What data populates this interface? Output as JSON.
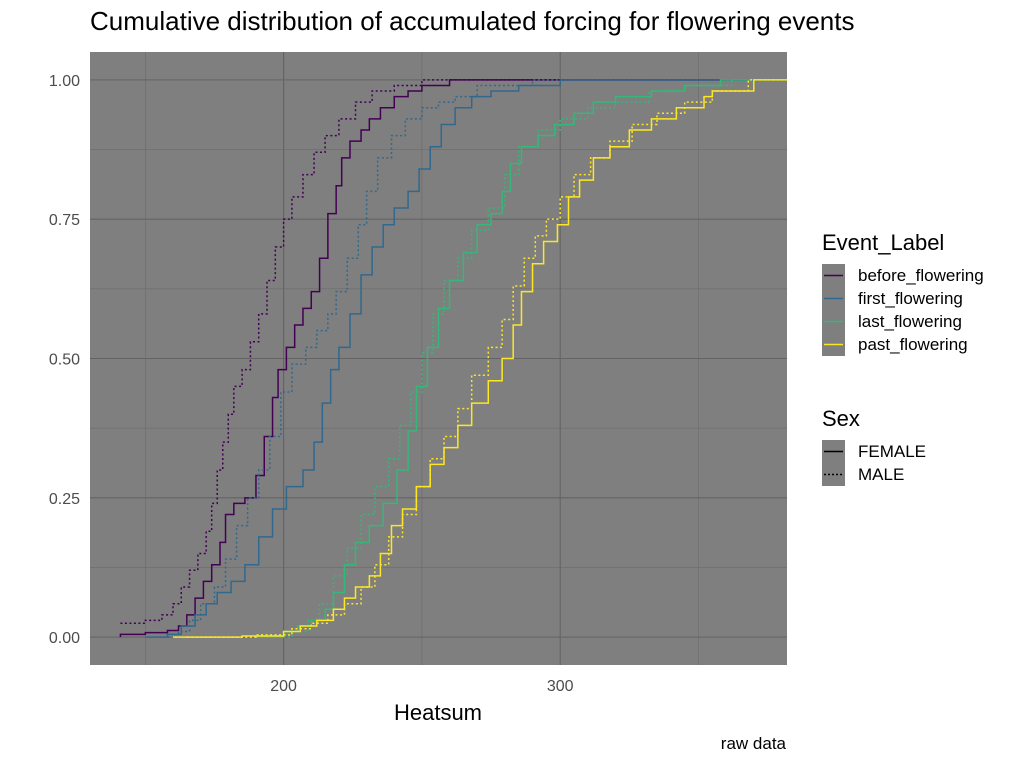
{
  "chart_data": {
    "type": "line",
    "title": "Cumulative distribution of accumulated forcing for flowering events",
    "xlabel": "Heatsum",
    "ylabel": "",
    "caption": "raw data",
    "xlim": [
      130,
      382
    ],
    "ylim": [
      -0.05,
      1.05
    ],
    "x_ticks": [
      200,
      300
    ],
    "y_ticks": [
      0.0,
      0.25,
      0.5,
      0.75,
      1.0
    ],
    "y_tick_labels": [
      "0.00",
      "0.25",
      "0.50",
      "0.75",
      "1.00"
    ],
    "background": "#7f7f7f",
    "grid": true,
    "legend_position": "right",
    "legends": [
      {
        "title": "Event_Label",
        "kind": "color",
        "entries": [
          {
            "label": "before_flowering",
            "color": "#440154"
          },
          {
            "label": "first_flowering",
            "color": "#31688e"
          },
          {
            "label": "last_flowering",
            "color": "#35b779"
          },
          {
            "label": "past_flowering",
            "color": "#fde725"
          }
        ]
      },
      {
        "title": "Sex",
        "kind": "linetype",
        "entries": [
          {
            "label": "FEMALE",
            "dash": "solid"
          },
          {
            "label": "MALE",
            "dash": "dotted"
          }
        ]
      }
    ],
    "series": [
      {
        "event": "before_flowering",
        "sex": "FEMALE",
        "color": "#440154",
        "dash": "solid",
        "points": [
          [
            141,
            0
          ],
          [
            141,
            0.005
          ],
          [
            150,
            0.008
          ],
          [
            158,
            0.012
          ],
          [
            162,
            0.02
          ],
          [
            165,
            0.04
          ],
          [
            168,
            0.07
          ],
          [
            171,
            0.1
          ],
          [
            174,
            0.13
          ],
          [
            177,
            0.17
          ],
          [
            179,
            0.22
          ],
          [
            182,
            0.24
          ],
          [
            186,
            0.25
          ],
          [
            190,
            0.29
          ],
          [
            193,
            0.36
          ],
          [
            196,
            0.43
          ],
          [
            198,
            0.48
          ],
          [
            201,
            0.52
          ],
          [
            204,
            0.56
          ],
          [
            207,
            0.59
          ],
          [
            210,
            0.62
          ],
          [
            213,
            0.68
          ],
          [
            216,
            0.76
          ],
          [
            219,
            0.81
          ],
          [
            221,
            0.86
          ],
          [
            224,
            0.89
          ],
          [
            228,
            0.91
          ],
          [
            231,
            0.93
          ],
          [
            235,
            0.95
          ],
          [
            240,
            0.97
          ],
          [
            245,
            0.98
          ],
          [
            250,
            0.99
          ],
          [
            260,
            1.0
          ],
          [
            382,
            1.0
          ]
        ]
      },
      {
        "event": "before_flowering",
        "sex": "MALE",
        "color": "#440154",
        "dash": "dotted",
        "points": [
          [
            141,
            0.025
          ],
          [
            150,
            0.03
          ],
          [
            156,
            0.04
          ],
          [
            160,
            0.06
          ],
          [
            163,
            0.09
          ],
          [
            166,
            0.12
          ],
          [
            169,
            0.15
          ],
          [
            172,
            0.19
          ],
          [
            174,
            0.24
          ],
          [
            176,
            0.3
          ],
          [
            178,
            0.35
          ],
          [
            180,
            0.4
          ],
          [
            182,
            0.45
          ],
          [
            185,
            0.48
          ],
          [
            188,
            0.53
          ],
          [
            191,
            0.58
          ],
          [
            194,
            0.64
          ],
          [
            197,
            0.7
          ],
          [
            200,
            0.75
          ],
          [
            203,
            0.79
          ],
          [
            207,
            0.83
          ],
          [
            211,
            0.87
          ],
          [
            215,
            0.9
          ],
          [
            220,
            0.93
          ],
          [
            226,
            0.96
          ],
          [
            232,
            0.98
          ],
          [
            240,
            0.99
          ],
          [
            250,
            1.0
          ],
          [
            382,
            1.0
          ]
        ]
      },
      {
        "event": "first_flowering",
        "sex": "FEMALE",
        "color": "#31688e",
        "dash": "solid",
        "points": [
          [
            150,
            0
          ],
          [
            158,
            0.005
          ],
          [
            163,
            0.02
          ],
          [
            168,
            0.04
          ],
          [
            172,
            0.06
          ],
          [
            176,
            0.08
          ],
          [
            181,
            0.1
          ],
          [
            186,
            0.13
          ],
          [
            191,
            0.18
          ],
          [
            196,
            0.23
          ],
          [
            201,
            0.27
          ],
          [
            207,
            0.3
          ],
          [
            211,
            0.35
          ],
          [
            214,
            0.42
          ],
          [
            217,
            0.48
          ],
          [
            220,
            0.52
          ],
          [
            224,
            0.58
          ],
          [
            228,
            0.65
          ],
          [
            232,
            0.7
          ],
          [
            236,
            0.74
          ],
          [
            240,
            0.77
          ],
          [
            245,
            0.8
          ],
          [
            249,
            0.84
          ],
          [
            253,
            0.88
          ],
          [
            257,
            0.92
          ],
          [
            262,
            0.95
          ],
          [
            268,
            0.97
          ],
          [
            275,
            0.98
          ],
          [
            285,
            0.99
          ],
          [
            300,
            1.0
          ],
          [
            382,
            1.0
          ]
        ]
      },
      {
        "event": "first_flowering",
        "sex": "MALE",
        "color": "#31688e",
        "dash": "dotted",
        "points": [
          [
            155,
            0
          ],
          [
            162,
            0.01
          ],
          [
            166,
            0.03
          ],
          [
            170,
            0.06
          ],
          [
            175,
            0.09
          ],
          [
            179,
            0.14
          ],
          [
            183,
            0.2
          ],
          [
            187,
            0.25
          ],
          [
            191,
            0.3
          ],
          [
            195,
            0.36
          ],
          [
            199,
            0.44
          ],
          [
            203,
            0.49
          ],
          [
            208,
            0.52
          ],
          [
            212,
            0.55
          ],
          [
            216,
            0.58
          ],
          [
            219,
            0.62
          ],
          [
            223,
            0.68
          ],
          [
            227,
            0.74
          ],
          [
            230,
            0.8
          ],
          [
            234,
            0.86
          ],
          [
            239,
            0.9
          ],
          [
            244,
            0.93
          ],
          [
            250,
            0.95
          ],
          [
            256,
            0.96
          ],
          [
            262,
            0.97
          ],
          [
            270,
            0.99
          ],
          [
            290,
            1.0
          ],
          [
            382,
            1.0
          ]
        ]
      },
      {
        "event": "last_flowering",
        "sex": "FEMALE",
        "color": "#35b779",
        "dash": "solid",
        "points": [
          [
            190,
            0
          ],
          [
            200,
            0.01
          ],
          [
            205,
            0.02
          ],
          [
            210,
            0.03
          ],
          [
            215,
            0.05
          ],
          [
            218,
            0.08
          ],
          [
            222,
            0.13
          ],
          [
            226,
            0.17
          ],
          [
            231,
            0.2
          ],
          [
            236,
            0.24
          ],
          [
            241,
            0.3
          ],
          [
            245,
            0.37
          ],
          [
            248,
            0.45
          ],
          [
            252,
            0.52
          ],
          [
            256,
            0.59
          ],
          [
            260,
            0.64
          ],
          [
            265,
            0.69
          ],
          [
            270,
            0.74
          ],
          [
            275,
            0.76
          ],
          [
            279,
            0.8
          ],
          [
            282,
            0.85
          ],
          [
            286,
            0.88
          ],
          [
            292,
            0.9
          ],
          [
            298,
            0.92
          ],
          [
            305,
            0.94
          ],
          [
            312,
            0.96
          ],
          [
            320,
            0.97
          ],
          [
            333,
            0.98
          ],
          [
            345,
            0.99
          ],
          [
            358,
            1.0
          ],
          [
            382,
            1.0
          ]
        ]
      },
      {
        "event": "last_flowering",
        "sex": "MALE",
        "color": "#35b779",
        "dash": "dotted",
        "points": [
          [
            195,
            0
          ],
          [
            203,
            0.01
          ],
          [
            209,
            0.03
          ],
          [
            213,
            0.06
          ],
          [
            218,
            0.11
          ],
          [
            223,
            0.16
          ],
          [
            228,
            0.22
          ],
          [
            233,
            0.27
          ],
          [
            238,
            0.32
          ],
          [
            242,
            0.38
          ],
          [
            246,
            0.44
          ],
          [
            250,
            0.51
          ],
          [
            254,
            0.58
          ],
          [
            258,
            0.64
          ],
          [
            263,
            0.68
          ],
          [
            268,
            0.73
          ],
          [
            274,
            0.77
          ],
          [
            280,
            0.83
          ],
          [
            285,
            0.88
          ],
          [
            292,
            0.91
          ],
          [
            300,
            0.93
          ],
          [
            310,
            0.95
          ],
          [
            320,
            0.96
          ],
          [
            332,
            0.98
          ],
          [
            345,
            0.99
          ],
          [
            362,
            1.0
          ],
          [
            382,
            1.0
          ]
        ]
      },
      {
        "event": "past_flowering",
        "sex": "FEMALE",
        "color": "#fde725",
        "dash": "solid",
        "points": [
          [
            160,
            0
          ],
          [
            185,
            0.002
          ],
          [
            200,
            0.01
          ],
          [
            206,
            0.02
          ],
          [
            212,
            0.03
          ],
          [
            218,
            0.05
          ],
          [
            222,
            0.07
          ],
          [
            226,
            0.09
          ],
          [
            231,
            0.11
          ],
          [
            235,
            0.15
          ],
          [
            239,
            0.2
          ],
          [
            243,
            0.23
          ],
          [
            248,
            0.27
          ],
          [
            253,
            0.31
          ],
          [
            258,
            0.34
          ],
          [
            263,
            0.38
          ],
          [
            268,
            0.42
          ],
          [
            274,
            0.46
          ],
          [
            279,
            0.5
          ],
          [
            283,
            0.56
          ],
          [
            286,
            0.62
          ],
          [
            290,
            0.67
          ],
          [
            294,
            0.71
          ],
          [
            299,
            0.74
          ],
          [
            303,
            0.79
          ],
          [
            307,
            0.82
          ],
          [
            312,
            0.86
          ],
          [
            318,
            0.88
          ],
          [
            325,
            0.91
          ],
          [
            333,
            0.93
          ],
          [
            342,
            0.95
          ],
          [
            352,
            0.97
          ],
          [
            355,
            0.98
          ],
          [
            370,
            1.0
          ],
          [
            382,
            1.0
          ]
        ]
      },
      {
        "event": "past_flowering",
        "sex": "MALE",
        "color": "#fde725",
        "dash": "dotted",
        "points": [
          [
            165,
            0
          ],
          [
            190,
            0.004
          ],
          [
            203,
            0.015
          ],
          [
            210,
            0.025
          ],
          [
            216,
            0.04
          ],
          [
            222,
            0.06
          ],
          [
            228,
            0.09
          ],
          [
            233,
            0.13
          ],
          [
            238,
            0.18
          ],
          [
            243,
            0.22
          ],
          [
            248,
            0.27
          ],
          [
            253,
            0.32
          ],
          [
            258,
            0.36
          ],
          [
            263,
            0.41
          ],
          [
            268,
            0.47
          ],
          [
            274,
            0.52
          ],
          [
            279,
            0.57
          ],
          [
            283,
            0.63
          ],
          [
            287,
            0.68
          ],
          [
            291,
            0.72
          ],
          [
            295,
            0.75
          ],
          [
            300,
            0.79
          ],
          [
            305,
            0.83
          ],
          [
            311,
            0.86
          ],
          [
            318,
            0.89
          ],
          [
            326,
            0.92
          ],
          [
            335,
            0.94
          ],
          [
            345,
            0.96
          ],
          [
            355,
            0.98
          ],
          [
            368,
            1.0
          ],
          [
            382,
            1.0
          ]
        ]
      }
    ]
  }
}
